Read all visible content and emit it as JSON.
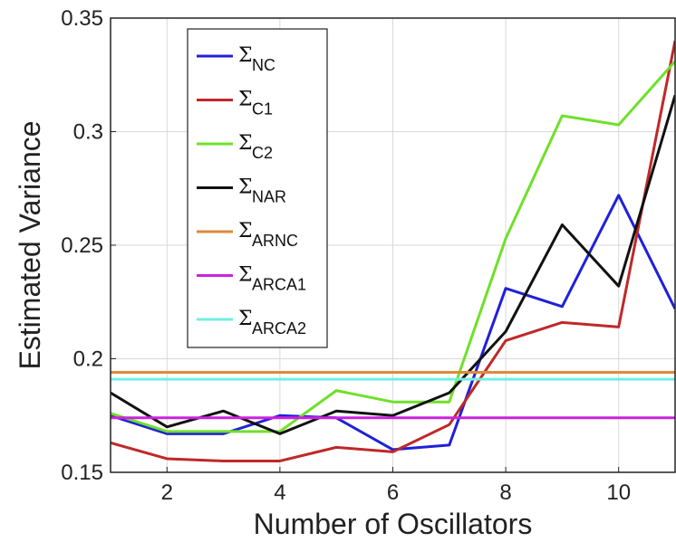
{
  "chart_data": {
    "type": "line",
    "xlabel": "Number of Oscillators",
    "ylabel": "Estimated Variance",
    "xlim": [
      1,
      11
    ],
    "ylim": [
      0.15,
      0.35
    ],
    "xticks": [
      2,
      4,
      6,
      8,
      10
    ],
    "xtick_labels": [
      "2",
      "4",
      "6",
      "8",
      "10"
    ],
    "yticks": [
      0.15,
      0.2,
      0.25,
      0.3,
      0.35
    ],
    "ytick_labels": [
      "0.15",
      "0.2",
      "0.25",
      "0.3",
      "0.35"
    ],
    "grid": true,
    "legend_position": "top-left",
    "x": [
      1,
      2,
      3,
      4,
      5,
      6,
      7,
      8,
      9,
      10,
      11
    ],
    "series": [
      {
        "name": "NC",
        "symbol": "Σ",
        "color": "#2020d8",
        "values": [
          0.175,
          0.167,
          0.167,
          0.175,
          0.174,
          0.16,
          0.162,
          0.231,
          0.223,
          0.272,
          0.222
        ]
      },
      {
        "name": "C1",
        "symbol": "Σ",
        "color": "#c02828",
        "values": [
          0.163,
          0.156,
          0.155,
          0.155,
          0.161,
          0.159,
          0.171,
          0.208,
          0.216,
          0.214,
          0.34
        ]
      },
      {
        "name": "C2",
        "symbol": "Σ",
        "color": "#6fe02a",
        "values": [
          0.176,
          0.168,
          0.168,
          0.168,
          0.186,
          0.181,
          0.181,
          0.253,
          0.307,
          0.303,
          0.331
        ]
      },
      {
        "name": "NAR",
        "symbol": "Σ",
        "color": "#111111",
        "values": [
          0.185,
          0.17,
          0.177,
          0.167,
          0.177,
          0.175,
          0.185,
          0.212,
          0.259,
          0.232,
          0.316
        ]
      },
      {
        "name": "ARNC",
        "symbol": "Σ",
        "color": "#dd8a3a",
        "values": [
          0.194,
          0.194,
          0.194,
          0.194,
          0.194,
          0.194,
          0.194,
          0.194,
          0.194,
          0.194,
          0.194
        ]
      },
      {
        "name": "ARCA1",
        "symbol": "Σ",
        "color": "#cc22dd",
        "values": [
          0.174,
          0.174,
          0.174,
          0.174,
          0.174,
          0.174,
          0.174,
          0.174,
          0.174,
          0.174,
          0.174
        ]
      },
      {
        "name": "ARCA2",
        "symbol": "Σ",
        "color": "#6ff0e0",
        "values": [
          0.191,
          0.191,
          0.191,
          0.191,
          0.191,
          0.191,
          0.191,
          0.191,
          0.191,
          0.191,
          0.191
        ]
      }
    ]
  }
}
